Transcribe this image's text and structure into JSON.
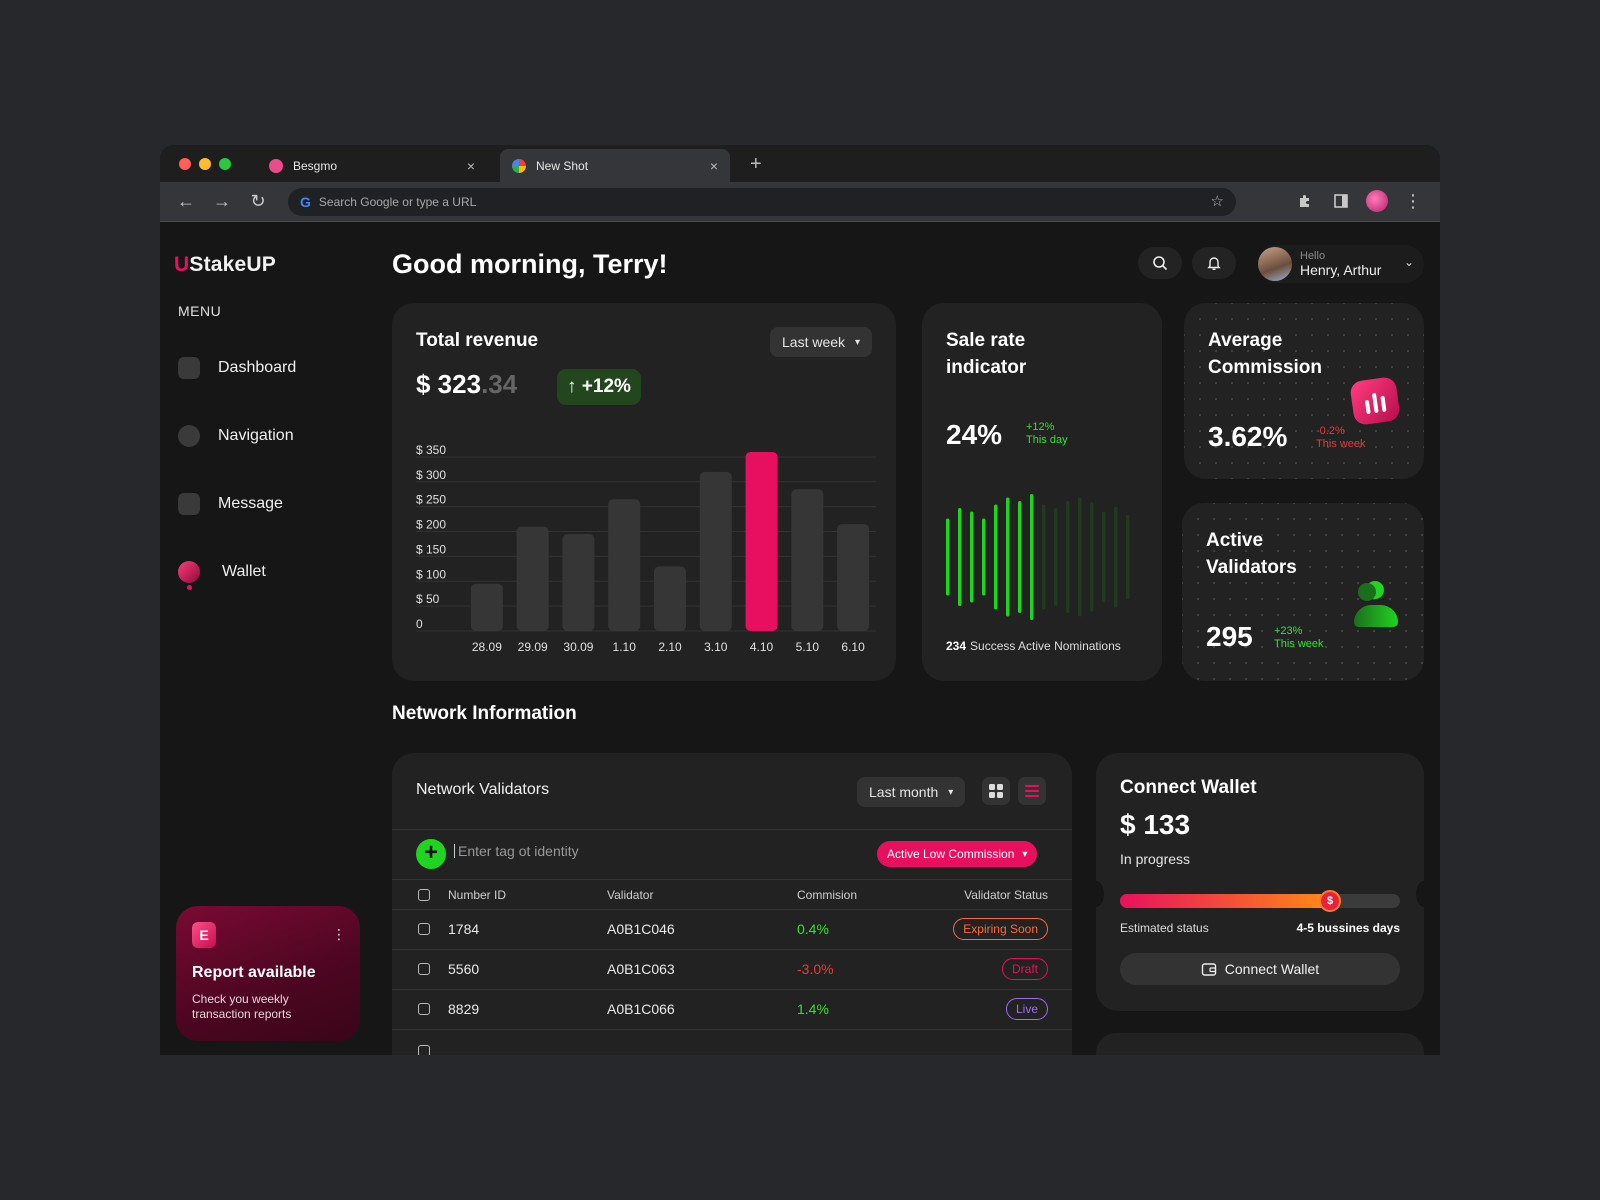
{
  "browser": {
    "tabs": [
      {
        "title": "Besgmo",
        "close": "×",
        "color": "#ea4c89"
      },
      {
        "title": "New Shot",
        "close": "×",
        "color": "#4285f4"
      }
    ],
    "new_tab": "+",
    "omnibox_placeholder": "Search Google or type a URL",
    "google_glyph": "G"
  },
  "sidebar": {
    "logo_mark": "U",
    "logo_text": "StakeUP",
    "menu_label": "MENU",
    "items": [
      {
        "label": "Dashboard",
        "icon": "home-icon"
      },
      {
        "label": "Navigation",
        "icon": "compass-icon"
      },
      {
        "label": "Message",
        "icon": "chat-icon"
      },
      {
        "label": "Wallet",
        "icon": "wallet-icon"
      }
    ],
    "report": {
      "icon_glyph": "E",
      "more": "⋮",
      "title": "Report available",
      "subtitle": "Check you weekly transaction reports"
    }
  },
  "header": {
    "greeting": "Good morning, Terry!",
    "user": {
      "hello": "Hello",
      "name": "Henry, Arthur"
    }
  },
  "revenue": {
    "title": "Total revenue",
    "period": "Last week",
    "amount_main": "$ 323",
    "amount_decimal": ".34",
    "change": "↑ +12%",
    "chart_data": {
      "type": "bar",
      "categories": [
        "28.09",
        "29.09",
        "30.09",
        "1.10",
        "2.10",
        "3.10",
        "4.10",
        "5.10",
        "6.10"
      ],
      "values": [
        95,
        210,
        195,
        265,
        130,
        320,
        360,
        285,
        215
      ],
      "highlight_index": 6,
      "yticks": [
        0,
        50,
        100,
        150,
        200,
        250,
        300,
        350
      ],
      "ytick_labels": [
        "0",
        "$ 50",
        "$ 100",
        "$ 150",
        "$ 200",
        "$ 250",
        "$ 300",
        "$ 350"
      ],
      "ylim": [
        0,
        370
      ],
      "grid": true,
      "colors": {
        "bar": "#363636",
        "highlight": "#e8105e"
      }
    }
  },
  "sale_rate": {
    "title": "Sale rate indicator",
    "value": "24%",
    "change": "+12%",
    "change_period": "This day",
    "nominations_count": "234",
    "nominations_label": "Success Active Nominations",
    "chart_data": {
      "type": "bar",
      "values": [
        0.55,
        0.7,
        0.65,
        0.55,
        0.75,
        0.85,
        0.8,
        0.9,
        0.75,
        0.7,
        0.8,
        0.85,
        0.78,
        0.65,
        0.72,
        0.6
      ],
      "active_count": 8,
      "colors": {
        "active": "#1fd51f",
        "inactive": "#1f3a1f"
      }
    }
  },
  "avg_commission": {
    "title": "Average Commission",
    "value": "3.62%",
    "change": "-0.2%",
    "change_period": "This week"
  },
  "active_validators": {
    "title": "Active Validators",
    "value": "295",
    "change": "+23%",
    "change_period": "This week"
  },
  "network": {
    "section_title": "Network Information",
    "card_title": "Network Validators",
    "period": "Last month",
    "add_glyph": "+",
    "search_placeholder": "Enter tag ot identity",
    "filter": "Active Low Commission",
    "columns": [
      "Number ID",
      "Validator",
      "Commision",
      "Validator Status"
    ],
    "rows": [
      {
        "id": "1784",
        "validator": "A0B1C046",
        "commission": "0.4%",
        "status": "Expiring Soon",
        "commission_color": "#2ee62e",
        "status_color": "#ff6a3c"
      },
      {
        "id": "5560",
        "validator": "A0B1C063",
        "commission": "-3.0%",
        "status": "Draft",
        "commission_color": "#e83a3a",
        "status_color": "#e8105e"
      },
      {
        "id": "8829",
        "validator": "A0B1C066",
        "commission": "1.4%",
        "status": "Live",
        "commission_color": "#2ee62e",
        "status_color": "#a06cf0"
      }
    ]
  },
  "connect_wallet": {
    "title": "Connect Wallet",
    "amount": "$ 133",
    "status": "In progress",
    "progress": 0.75,
    "knob_glyph": "$",
    "estimate_label": "Estimated status",
    "estimate_value": "4-5 bussines days",
    "button": "Connect Wallet"
  },
  "colors": {
    "accent": "#e8105e",
    "positive": "#2ee62e",
    "negative": "#e83a3a",
    "card": "#222222",
    "background": "#161616"
  }
}
